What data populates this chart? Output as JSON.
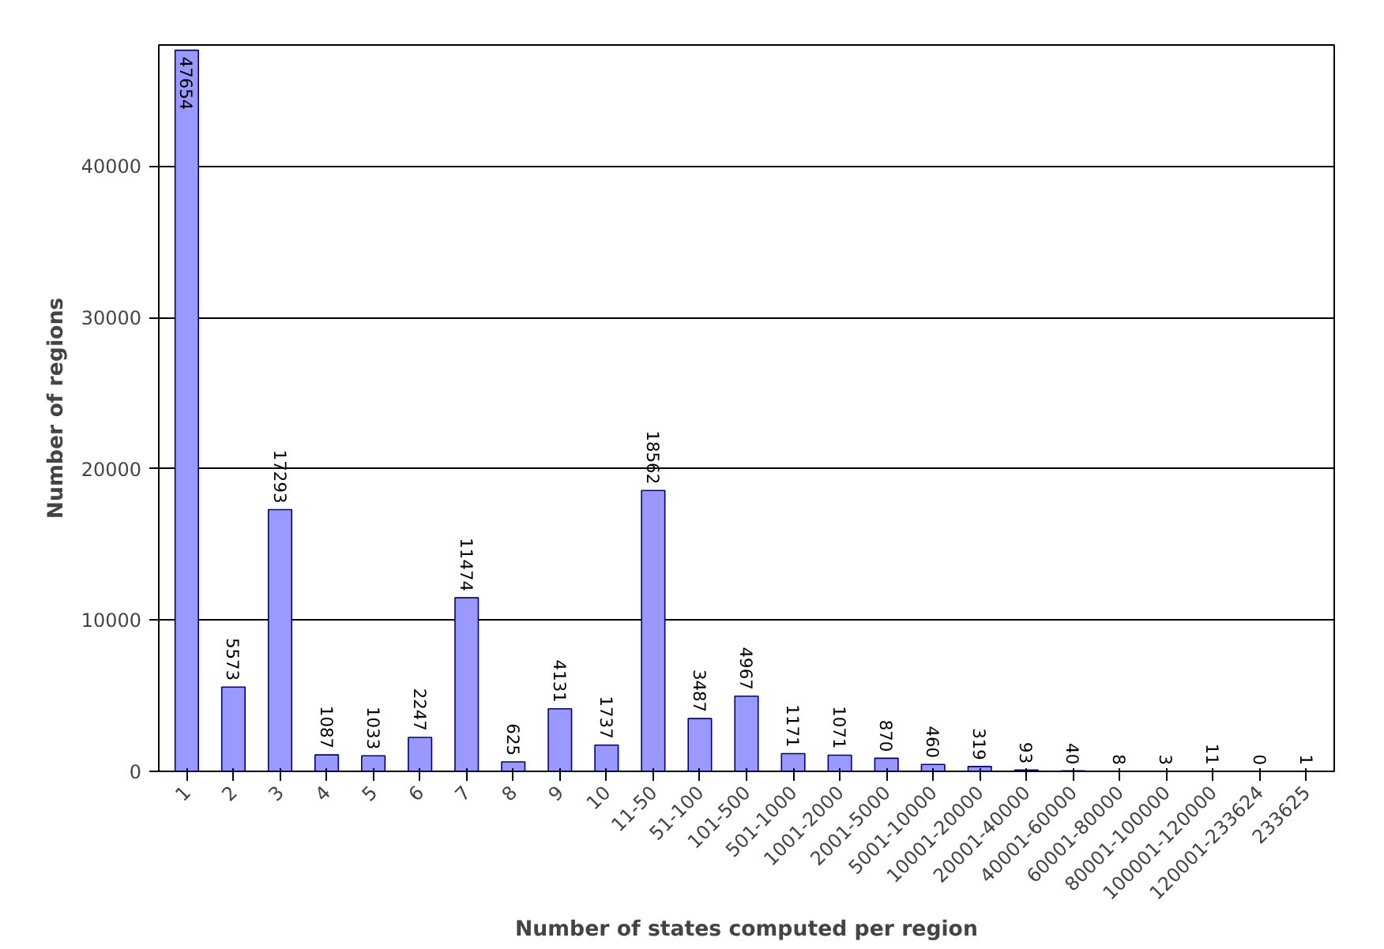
{
  "chart_data": {
    "type": "bar",
    "xlabel": "Number of states computed per region",
    "ylabel": "Number of regions",
    "categories": [
      "1",
      "2",
      "3",
      "4",
      "5",
      "6",
      "7",
      "8",
      "9",
      "10",
      "11-50",
      "51-100",
      "101-500",
      "501-1000",
      "1001-2000",
      "2001-5000",
      "5001-10000",
      "10001-20000",
      "20001-40000",
      "40001-60000",
      "60001-80000",
      "80001-100000",
      "100001-120000",
      "120001-233624",
      "233625"
    ],
    "values": [
      47654,
      5573,
      17293,
      1087,
      1033,
      2247,
      11474,
      625,
      4131,
      1737,
      18562,
      3487,
      4967,
      1171,
      1071,
      870,
      460,
      319,
      93,
      40,
      8,
      3,
      11,
      0,
      1
    ],
    "color": "#9999ff",
    "ylim": [
      0,
      48000
    ],
    "yticks": [
      0,
      10000,
      20000,
      30000,
      40000
    ],
    "grid": "y",
    "data_labels": true
  }
}
